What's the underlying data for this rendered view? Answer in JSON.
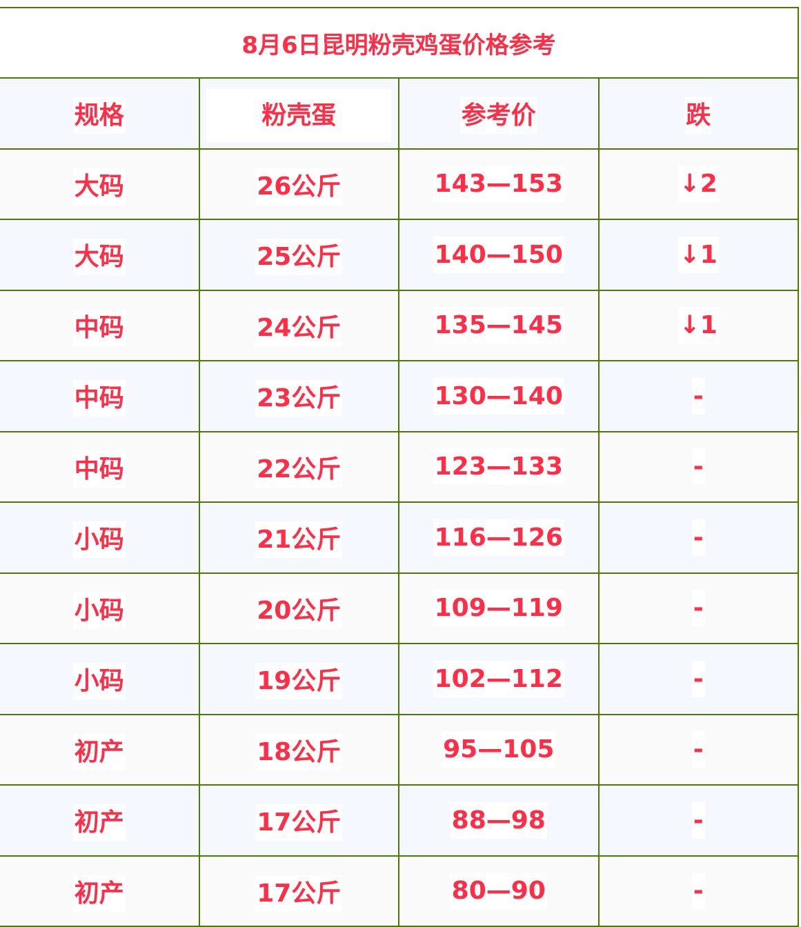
{
  "title": "8月6日昆明粉壳鸡蛋价格参考",
  "headers": [
    "规格",
    "粉壳蛋",
    "参考价",
    "跌"
  ],
  "rows": [
    [
      "大码",
      "26公斤",
      "143—153",
      "↓2"
    ],
    [
      "大码",
      "25公斤",
      "140—150",
      "↓1"
    ],
    [
      "中码",
      "24公斤",
      "135—145",
      "↓1"
    ],
    [
      "中码",
      "23公斤",
      "130—140",
      "-"
    ],
    [
      "中码",
      "22公斤",
      "123—133",
      "-"
    ],
    [
      "小码",
      "21公斤",
      "116—126",
      "-"
    ],
    [
      "小码",
      "20公斤",
      "109—119",
      "-"
    ],
    [
      "小码",
      "19公斤",
      "102—112",
      "-"
    ],
    [
      "初产",
      "18公斤",
      "95—105",
      "-"
    ],
    [
      "初产",
      "17公斤",
      "88—98",
      "-"
    ],
    [
      "初产",
      "17公斤",
      "80—90",
      "-"
    ]
  ],
  "colors": {
    "text": "#ff2d46",
    "border": "#4a7a00",
    "row_alt": "#f5f9ff"
  }
}
